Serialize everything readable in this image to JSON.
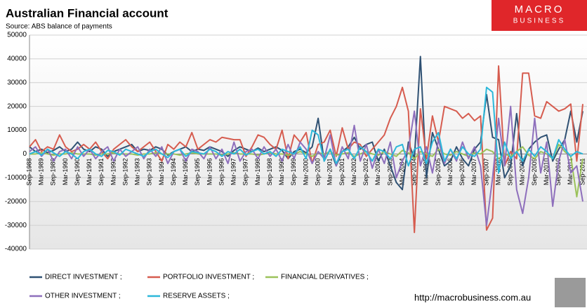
{
  "chart_data": {
    "type": "line",
    "title": "Australian Financial account",
    "subtitle": "Source: ABS balance of payments",
    "logo": [
      "MACRO",
      "BUSINESS"
    ],
    "url": "http://macrobusiness.com.au",
    "categories": [
      "Sep-1988",
      null,
      "Mar-1989",
      null,
      "Sep-1989",
      null,
      "Mar-1990",
      null,
      "Sep-1990",
      null,
      "Mar-1991",
      null,
      "Sep-1991",
      null,
      "Mar-1992",
      null,
      "Sep-1992",
      null,
      "Mar-1993",
      null,
      "Sep-1993",
      null,
      "Mar-1994",
      null,
      "Sep-1994",
      null,
      "Mar-1995",
      null,
      "Sep-1995",
      null,
      "Mar-1996",
      null,
      "Sep-1996",
      null,
      "Mar-1997",
      null,
      "Sep-1997",
      null,
      "Mar-1998",
      null,
      "Sep-1998",
      null,
      "Mar-1999",
      null,
      "Sep-1999",
      null,
      "Mar-2000",
      null,
      "Sep-2000",
      null,
      "Mar-2001",
      null,
      "Sep-2001",
      null,
      "Mar-2002",
      null,
      "Sep-2002",
      null,
      "Mar-2003",
      null,
      "Sep-2003",
      null,
      "Mar-2004",
      null,
      "Sep-2004",
      null,
      "Mar-2005",
      null,
      "Sep-2005",
      null,
      "Mar-2006",
      null,
      "Sep-2006",
      null,
      "Mar-2007",
      null,
      "Sep-2007",
      null,
      "Mar-2008",
      null,
      "Sep-2008",
      null,
      "Mar-2009",
      null,
      "Sep-2009",
      null,
      "Mar-2010",
      null,
      "Sep-2010",
      null,
      "Mar-2011",
      null,
      "Sep-2011"
    ],
    "series": [
      {
        "name": "DIRECT INVESTMENT ;",
        "color": "#2f5173",
        "values": [
          3000,
          1000,
          2000,
          500,
          1500,
          3000,
          1000,
          2000,
          5000,
          2000,
          1000,
          3000,
          2000,
          -1000,
          1000,
          2000,
          3000,
          4000,
          1000,
          2000,
          1500,
          3000,
          2000,
          -500,
          1000,
          2000,
          3000,
          1000,
          2000,
          1500,
          3000,
          2000,
          1000,
          -1000,
          1500,
          3000,
          2000,
          1000,
          2500,
          1000,
          2000,
          3000,
          1500,
          -2000,
          1000,
          2000,
          500,
          3000,
          15000,
          -3000,
          2000,
          -5000,
          1000,
          3000,
          7000,
          2000,
          4000,
          5000,
          -3000,
          2000,
          -5000,
          -12000,
          -15000,
          5000,
          -2000,
          41000,
          -10000,
          9000,
          2000,
          -5000,
          -3000,
          3000,
          -2000,
          -5000,
          2000,
          5000,
          25000,
          7000,
          6000,
          -10000,
          -5000,
          17000,
          -5000,
          2000,
          5000,
          7000,
          8000,
          -3000,
          2000,
          6000,
          18000,
          5000,
          18000
        ]
      },
      {
        "name": "PORTFOLIO INVESTMENT ;",
        "color": "#d65c4f",
        "values": [
          3000,
          6000,
          1000,
          3000,
          2000,
          8000,
          3000,
          1000,
          2000,
          4000,
          2000,
          5000,
          1000,
          -2000,
          2000,
          4000,
          6000,
          3000,
          1000,
          3000,
          5000,
          1000,
          -3000,
          4000,
          2000,
          5000,
          3000,
          9000,
          2000,
          4000,
          6000,
          5000,
          7000,
          6500,
          6000,
          6000,
          -1000,
          3000,
          8000,
          7000,
          4000,
          2000,
          10000,
          -2000,
          8000,
          5000,
          9000,
          -4000,
          4000,
          5000,
          10000,
          -1000,
          11000,
          2000,
          5000,
          4000,
          -1000,
          2000,
          5000,
          8000,
          15000,
          20000,
          28000,
          18000,
          -33000,
          19000,
          -2000,
          16000,
          5000,
          20000,
          19000,
          18000,
          15000,
          17000,
          14000,
          16000,
          -32000,
          -27000,
          37000,
          -5000,
          1000,
          -2000,
          34000,
          34000,
          16000,
          15000,
          22000,
          20000,
          18000,
          19000,
          21000,
          -3000,
          21000
        ]
      },
      {
        "name": "FINANCIAL DERIVATIVES ;",
        "color": "#9bc25a",
        "values": [
          0,
          0,
          500,
          0,
          -500,
          0,
          0,
          500,
          0,
          0,
          0,
          -500,
          0,
          0,
          500,
          0,
          0,
          0,
          -500,
          0,
          0,
          500,
          0,
          0,
          0,
          -500,
          0,
          500,
          0,
          0,
          0,
          0,
          -500,
          0,
          500,
          0,
          0,
          0,
          -500,
          0,
          500,
          0,
          0,
          -500,
          0,
          1000,
          0,
          -1000,
          500,
          0,
          1000,
          -500,
          0,
          500,
          -1000,
          0,
          1000,
          0,
          -500,
          1000,
          0,
          -1000,
          1500,
          500,
          -2000,
          1000,
          0,
          -1000,
          2000,
          0,
          -500,
          1000,
          0,
          -1000,
          500,
          0,
          2000,
          1000,
          -2000,
          0,
          -1000,
          1000,
          3000,
          -500,
          -2000,
          1000,
          0,
          -2000,
          4000,
          1000,
          -1000,
          -18000,
          -2000
        ]
      },
      {
        "name": "OTHER INVESTMENT ;",
        "color": "#8e6fbc",
        "values": [
          1000,
          3000,
          -1000,
          2000,
          -3000,
          1000,
          2000,
          -2000,
          3000,
          -1000,
          2000,
          -2000,
          1000,
          3000,
          -3000,
          2000,
          -1000,
          1000,
          3000,
          -2000,
          2000,
          -1000,
          3000,
          -4000,
          1000,
          2000,
          -3000,
          2000,
          1000,
          -2000,
          3000,
          -2000,
          2000,
          -4000,
          5000,
          -3000,
          1000,
          2000,
          -2000,
          3000,
          -1000,
          2000,
          -3000,
          4000,
          -2000,
          5000,
          2000,
          -4000,
          1000,
          -2000,
          8000,
          -5000,
          3000,
          -2000,
          12000,
          -3000,
          4000,
          -6000,
          2000,
          -4000,
          5000,
          -10000,
          -3000,
          2000,
          18000,
          -5000,
          3000,
          -8000,
          6000,
          -4000,
          2000,
          -3000,
          5000,
          -2000,
          3000,
          -5000,
          -30000,
          -10000,
          15000,
          -5000,
          20000,
          -15000,
          -25000,
          -10000,
          15000,
          -8000,
          5000,
          -22000,
          -3000,
          6000,
          -8000,
          -5000,
          -20000
        ]
      },
      {
        "name": "RESERVE ASSETS ;",
        "color": "#2cb8da",
        "values": [
          0,
          1000,
          -500,
          2000,
          500,
          -1000,
          1000,
          0,
          -2000,
          1000,
          2000,
          0,
          -1000,
          1500,
          1000,
          -500,
          2000,
          1000,
          0,
          -1000,
          1000,
          2000,
          0,
          -1500,
          1000,
          2000,
          -1000,
          1000,
          500,
          0,
          2000,
          1000,
          -1000,
          1000,
          0,
          2000,
          -500,
          1000,
          2000,
          0,
          1000,
          -1000,
          2000,
          1000,
          0,
          3000,
          -2000,
          10000,
          8000,
          -3000,
          2000,
          -4000,
          1000,
          2000,
          -2000,
          3000,
          1000,
          -3000,
          2000,
          1000,
          -2000,
          3000,
          4000,
          -5000,
          2000,
          3000,
          -4000,
          5000,
          9000,
          -3000,
          2000,
          -2000,
          3000,
          0,
          -1000,
          2000,
          28000,
          26000,
          -8000,
          5000,
          -2000,
          1000,
          -3000,
          2000,
          -1000,
          3000,
          1000,
          -2000,
          6000,
          2000,
          -1000,
          1000,
          0
        ]
      }
    ],
    "ylim": [
      -40000,
      50000
    ],
    "yticks": [
      -40000,
      -30000,
      -20000,
      -10000,
      0,
      10000,
      20000,
      30000,
      40000,
      50000
    ],
    "grid": true
  }
}
